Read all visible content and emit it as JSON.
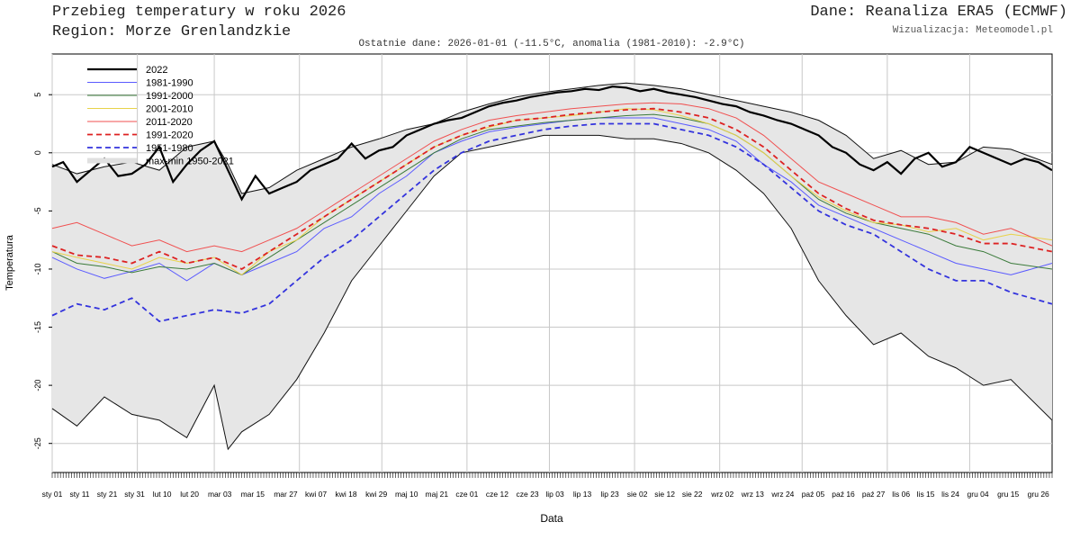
{
  "header": {
    "title": "Przebieg temperatury w roku 2026",
    "subtitle": "Region: Morze Grenlandzkie",
    "source": "Dane: Reanaliza ERA5 (ECMWF)",
    "credit": "Wizualizacja: Meteomodel.pl",
    "last_data": "Ostatnie dane: 2026-01-01 (-11.5°C, anomalia (1981-2010): -2.9°C)"
  },
  "chart_data": {
    "type": "line",
    "xlabel": "Data",
    "ylabel": "Temperatura",
    "xlim": [
      1,
      365
    ],
    "ylim": [
      -27.5,
      8.5
    ],
    "yticks": [
      5,
      0,
      -5,
      -10,
      -15,
      -20,
      -25
    ],
    "grid": true,
    "legend_position": "top-left",
    "xticks": [
      {
        "day": 1,
        "label": "sty 01"
      },
      {
        "day": 11,
        "label": "sty 11"
      },
      {
        "day": 21,
        "label": "sty 21"
      },
      {
        "day": 31,
        "label": "sty 31"
      },
      {
        "day": 41,
        "label": "lut 10"
      },
      {
        "day": 51,
        "label": "lut 20"
      },
      {
        "day": 62,
        "label": "mar 03"
      },
      {
        "day": 74,
        "label": "mar 15"
      },
      {
        "day": 86,
        "label": "mar 27"
      },
      {
        "day": 97,
        "label": "kwi 07"
      },
      {
        "day": 108,
        "label": "kwi 18"
      },
      {
        "day": 119,
        "label": "kwi 29"
      },
      {
        "day": 130,
        "label": "maj 10"
      },
      {
        "day": 141,
        "label": "maj 21"
      },
      {
        "day": 152,
        "label": "cze 01"
      },
      {
        "day": 163,
        "label": "cze 12"
      },
      {
        "day": 174,
        "label": "cze 23"
      },
      {
        "day": 184,
        "label": "lip 03"
      },
      {
        "day": 194,
        "label": "lip 13"
      },
      {
        "day": 204,
        "label": "lip 23"
      },
      {
        "day": 214,
        "label": "sie 02"
      },
      {
        "day": 224,
        "label": "sie 12"
      },
      {
        "day": 234,
        "label": "sie 22"
      },
      {
        "day": 245,
        "label": "wrz 02"
      },
      {
        "day": 256,
        "label": "wrz 13"
      },
      {
        "day": 267,
        "label": "wrz 24"
      },
      {
        "day": 278,
        "label": "paź 05"
      },
      {
        "day": 289,
        "label": "paź 16"
      },
      {
        "day": 300,
        "label": "paź 27"
      },
      {
        "day": 310,
        "label": "lis 06"
      },
      {
        "day": 319,
        "label": "lis 15"
      },
      {
        "day": 328,
        "label": "lis 24"
      },
      {
        "day": 338,
        "label": "gru 04"
      },
      {
        "day": 349,
        "label": "gru 15"
      },
      {
        "day": 360,
        "label": "gru 26"
      }
    ],
    "vgrid_days": [
      1,
      32,
      60,
      91,
      121,
      152,
      182,
      213,
      244,
      274,
      305,
      335
    ],
    "band": {
      "name": "max-min 1950-2021",
      "color": "#e6e6e6",
      "x": [
        1,
        10,
        20,
        30,
        40,
        50,
        60,
        65,
        70,
        80,
        90,
        100,
        110,
        120,
        130,
        140,
        150,
        160,
        170,
        180,
        190,
        200,
        210,
        220,
        230,
        240,
        250,
        260,
        270,
        280,
        290,
        300,
        310,
        320,
        330,
        340,
        350,
        365
      ],
      "upper": [
        -1.0,
        -1.8,
        -1.2,
        -0.8,
        -1.5,
        0.5,
        1.0,
        -1.0,
        -3.5,
        -3.0,
        -1.5,
        -0.5,
        0.5,
        1.2,
        2.0,
        2.5,
        3.5,
        4.2,
        4.8,
        5.2,
        5.5,
        5.8,
        6.0,
        5.8,
        5.5,
        5.0,
        4.5,
        4.0,
        3.5,
        2.8,
        1.5,
        -0.5,
        0.2,
        -1.0,
        -0.8,
        0.5,
        0.3,
        -1.0
      ],
      "lower": [
        -22.0,
        -23.5,
        -21.0,
        -22.5,
        -23.0,
        -24.5,
        -20.0,
        -25.5,
        -24.0,
        -22.5,
        -19.5,
        -15.5,
        -11.0,
        -8.0,
        -5.0,
        -2.0,
        0.0,
        0.5,
        1.0,
        1.5,
        1.5,
        1.5,
        1.2,
        1.2,
        0.8,
        0.0,
        -1.5,
        -3.5,
        -6.5,
        -11.0,
        -14.0,
        -16.5,
        -15.5,
        -17.5,
        -18.5,
        -20.0,
        -19.5,
        -23.0
      ]
    },
    "series": [
      {
        "name": "2022",
        "color": "#000000",
        "width": 2.2,
        "dash": "",
        "x": [
          1,
          5,
          10,
          15,
          20,
          25,
          30,
          35,
          40,
          45,
          50,
          55,
          60,
          65,
          70,
          75,
          80,
          85,
          90,
          95,
          100,
          105,
          110,
          115,
          120,
          125,
          130,
          135,
          140,
          145,
          150,
          155,
          160,
          165,
          170,
          175,
          180,
          185,
          190,
          195,
          200,
          205,
          210,
          215,
          220,
          225,
          230,
          235,
          240,
          245,
          250,
          255,
          260,
          265,
          270,
          275,
          280,
          285,
          290,
          295,
          300,
          305,
          310,
          315,
          320,
          325,
          330,
          335,
          340,
          345,
          350,
          355,
          360,
          365
        ],
        "y": [
          -1.2,
          -0.8,
          -2.5,
          -1.5,
          -0.5,
          -2.0,
          -1.8,
          -1.0,
          0.5,
          -2.5,
          -1.0,
          0.2,
          1.0,
          -1.5,
          -4.0,
          -2.0,
          -3.5,
          -3.0,
          -2.5,
          -1.5,
          -1.0,
          -0.5,
          0.8,
          -0.5,
          0.2,
          0.5,
          1.5,
          2.0,
          2.5,
          2.8,
          3.0,
          3.5,
          4.0,
          4.3,
          4.5,
          4.8,
          5.0,
          5.2,
          5.3,
          5.5,
          5.4,
          5.7,
          5.6,
          5.3,
          5.5,
          5.2,
          5.0,
          4.8,
          4.5,
          4.2,
          4.0,
          3.5,
          3.2,
          2.8,
          2.5,
          2.0,
          1.5,
          0.5,
          0.0,
          -1.0,
          -1.5,
          -0.8,
          -1.8,
          -0.5,
          0.0,
          -1.2,
          -0.8,
          0.5,
          0.0,
          -0.5,
          -1.0,
          -0.5,
          -0.8,
          -1.5
        ]
      },
      {
        "name": "1981-1990",
        "color": "#5a5aff",
        "width": 1,
        "dash": "",
        "x": [
          1,
          10,
          20,
          30,
          40,
          50,
          60,
          70,
          80,
          90,
          100,
          110,
          120,
          130,
          140,
          150,
          160,
          170,
          180,
          190,
          200,
          210,
          220,
          230,
          240,
          250,
          260,
          270,
          280,
          290,
          300,
          310,
          320,
          330,
          340,
          350,
          365
        ],
        "y": [
          -9.0,
          -10.0,
          -10.8,
          -10.2,
          -9.5,
          -11.0,
          -9.5,
          -10.5,
          -9.5,
          -8.5,
          -6.5,
          -5.5,
          -3.5,
          -2.0,
          0.0,
          1.0,
          1.8,
          2.2,
          2.5,
          2.8,
          3.0,
          3.0,
          3.0,
          2.5,
          2.0,
          1.0,
          -1.0,
          -2.5,
          -4.5,
          -5.5,
          -6.5,
          -7.5,
          -8.5,
          -9.5,
          -10.0,
          -10.5,
          -9.5
        ]
      },
      {
        "name": "1991-2000",
        "color": "#3a7a3a",
        "width": 1,
        "dash": "",
        "x": [
          1,
          10,
          20,
          30,
          40,
          50,
          60,
          70,
          80,
          90,
          100,
          110,
          120,
          130,
          140,
          150,
          160,
          170,
          180,
          190,
          200,
          210,
          220,
          230,
          240,
          250,
          260,
          270,
          280,
          290,
          300,
          310,
          320,
          330,
          340,
          350,
          365
        ],
        "y": [
          -8.5,
          -9.5,
          -9.8,
          -10.3,
          -9.8,
          -10.0,
          -9.5,
          -10.5,
          -9.0,
          -7.5,
          -6.0,
          -4.5,
          -3.0,
          -1.5,
          0.0,
          1.2,
          2.0,
          2.3,
          2.6,
          2.8,
          3.0,
          3.2,
          3.3,
          3.0,
          2.5,
          1.5,
          0.0,
          -2.0,
          -4.0,
          -5.2,
          -6.0,
          -6.5,
          -7.0,
          -8.0,
          -8.5,
          -9.5,
          -10.0
        ]
      },
      {
        "name": "2001-2010",
        "color": "#e8d24a",
        "width": 1,
        "dash": "",
        "x": [
          1,
          10,
          20,
          30,
          40,
          50,
          60,
          70,
          80,
          90,
          100,
          110,
          120,
          130,
          140,
          150,
          160,
          170,
          180,
          190,
          200,
          210,
          220,
          230,
          240,
          250,
          260,
          270,
          280,
          290,
          300,
          310,
          320,
          330,
          340,
          350,
          365
        ],
        "y": [
          -8.5,
          -9.0,
          -9.5,
          -10.0,
          -9.0,
          -9.5,
          -9.0,
          -10.5,
          -8.5,
          -7.5,
          -5.5,
          -4.0,
          -2.5,
          -1.0,
          0.5,
          1.5,
          2.2,
          2.8,
          3.0,
          3.2,
          3.5,
          3.8,
          3.7,
          3.2,
          2.5,
          1.5,
          0.0,
          -2.0,
          -3.8,
          -5.0,
          -6.0,
          -6.2,
          -6.8,
          -6.5,
          -7.5,
          -7.0,
          -7.5
        ]
      },
      {
        "name": "2011-2020",
        "color": "#f05050",
        "width": 1,
        "dash": "",
        "x": [
          1,
          10,
          20,
          30,
          40,
          50,
          60,
          70,
          80,
          90,
          100,
          110,
          120,
          130,
          140,
          150,
          160,
          170,
          180,
          190,
          200,
          210,
          220,
          230,
          240,
          250,
          260,
          270,
          280,
          290,
          300,
          310,
          320,
          330,
          340,
          350,
          365
        ],
        "y": [
          -6.5,
          -6.0,
          -7.0,
          -8.0,
          -7.5,
          -8.5,
          -8.0,
          -8.5,
          -7.5,
          -6.5,
          -5.0,
          -3.5,
          -2.0,
          -0.5,
          1.0,
          2.0,
          2.8,
          3.2,
          3.5,
          3.8,
          4.0,
          4.2,
          4.3,
          4.2,
          3.8,
          3.0,
          1.5,
          -0.5,
          -2.5,
          -3.5,
          -4.5,
          -5.5,
          -5.5,
          -6.0,
          -7.0,
          -6.5,
          -8.0
        ]
      },
      {
        "name": "1991-2020",
        "color": "#dd2222",
        "width": 1.8,
        "dash": "6,4",
        "x": [
          1,
          10,
          20,
          30,
          40,
          50,
          60,
          70,
          80,
          90,
          100,
          110,
          120,
          130,
          140,
          150,
          160,
          170,
          180,
          190,
          200,
          210,
          220,
          230,
          240,
          250,
          260,
          270,
          280,
          290,
          300,
          310,
          320,
          330,
          340,
          350,
          365
        ],
        "y": [
          -8.0,
          -8.8,
          -9.0,
          -9.5,
          -8.5,
          -9.5,
          -9.0,
          -10.0,
          -8.5,
          -7.0,
          -5.5,
          -4.0,
          -2.5,
          -1.0,
          0.5,
          1.5,
          2.3,
          2.8,
          3.0,
          3.3,
          3.5,
          3.7,
          3.8,
          3.5,
          3.0,
          2.0,
          0.5,
          -1.5,
          -3.5,
          -4.8,
          -5.8,
          -6.2,
          -6.5,
          -7.0,
          -7.8,
          -7.8,
          -8.5
        ]
      },
      {
        "name": "1951-1980",
        "color": "#3333dd",
        "width": 1.8,
        "dash": "6,4",
        "x": [
          1,
          10,
          20,
          30,
          40,
          50,
          60,
          70,
          80,
          90,
          100,
          110,
          120,
          130,
          140,
          150,
          160,
          170,
          180,
          190,
          200,
          210,
          220,
          230,
          240,
          250,
          260,
          270,
          280,
          290,
          300,
          310,
          320,
          330,
          340,
          350,
          365
        ],
        "y": [
          -14.0,
          -13.0,
          -13.5,
          -12.5,
          -14.5,
          -14.0,
          -13.5,
          -13.8,
          -13.0,
          -11.0,
          -9.0,
          -7.5,
          -5.5,
          -3.5,
          -1.5,
          0.0,
          1.0,
          1.5,
          2.0,
          2.3,
          2.5,
          2.5,
          2.5,
          2.0,
          1.5,
          0.5,
          -1.0,
          -3.0,
          -5.0,
          -6.2,
          -7.0,
          -8.5,
          -10.0,
          -11.0,
          -11.0,
          -12.0,
          -13.0
        ]
      }
    ]
  }
}
